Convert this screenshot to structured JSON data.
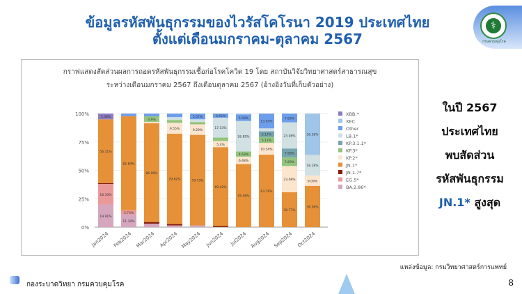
{
  "header": {
    "title_line1": "ข้อมูลรหัสพันธุกรรมของไวรัสโคโรนา 2019 ประเทศไทย",
    "title_line2": "ตั้งแต่เดือนมกราคม-ตุลาคม 2567",
    "logo_text": "กรมควบคุมโรค"
  },
  "side_text": {
    "line1": "ในปี 2567",
    "line2": "ประเทศไทย",
    "line3": "พบสัดส่วน",
    "line4": "รหัสพันธุกรรม",
    "highlight": "JN.1*",
    "line5_rest": " สูงสุด"
  },
  "footer": {
    "source": "แหล่งข้อมูล: กรมวิทยาศาสตร์การแพทย์",
    "org": "กองระบาดวิทยา กรมควบคุมโรค",
    "page": "8"
  },
  "chart_data": {
    "type": "bar",
    "stacked": true,
    "title": "กราฟแสดงสัดส่วนผลการถอดรหัสพันธุกรรมเชื้อก่อโรคโควิด 19 โดย สถาบันวิจัยวิทยาศาสตร์สาธารณสุข",
    "subtitle": "ระหว่างเดือนมกราคม 2567 ถึงเดือนตุลาคม 2567 (อ้างอิงวันที่เก็บตัวอย่าง)",
    "categories": [
      "Jan2024",
      "Feb2024",
      "Mar2024",
      "Apr2024",
      "May2024",
      "Jun2024",
      "Jul2024",
      "Aug2024",
      "Sep2024",
      "Oct2024"
    ],
    "yticks": [
      "0%",
      "25%",
      "50%",
      "75%",
      "100%"
    ],
    "ylim": [
      0,
      100
    ],
    "legend": "right",
    "series": [
      {
        "name": "BA.2.86*",
        "color": "#d5a6bd",
        "values": [
          19.91,
          11.1,
          3,
          1.5,
          1.5,
          0,
          0,
          0,
          0,
          0
        ],
        "labels": [
          "19.91%",
          "11.10%",
          "",
          "",
          "",
          "",
          "",
          "",
          "",
          ""
        ]
      },
      {
        "name": "EG.5*",
        "color": "#ea9999",
        "values": [
          18.1,
          3.73,
          0,
          0,
          0,
          0,
          0,
          0,
          0,
          0
        ],
        "labels": [
          "18.10%",
          "3.73%",
          "",
          "",
          "",
          "",
          "",
          "",
          "",
          ""
        ]
      },
      {
        "name": "JN.1.7*",
        "color": "#85200c",
        "values": [
          0.8,
          0,
          1.5,
          1.2,
          0,
          1,
          0,
          0,
          0,
          0
        ],
        "labels": [
          "",
          "",
          "",
          "",
          "",
          "",
          "",
          "",
          "",
          ""
        ]
      },
      {
        "name": "JN.1*",
        "color": "#e69138",
        "values": [
          56.11,
          82.84,
          86.99,
          79.62,
          79.73,
          69.42,
          55.56,
          63.79,
          30.77,
          36.36
        ],
        "labels": [
          "56.11%",
          "82.84%",
          "86.99%",
          "79.62%",
          "79.73%",
          "69.42%",
          "55.56%",
          "63.79%",
          "30.77%",
          "36.36%"
        ]
      },
      {
        "name": "KP.2*",
        "color": "#fce5cd",
        "values": [
          0,
          0,
          1.2,
          9.55,
          9.29,
          5.4,
          6.48,
          10.34,
          23.08,
          9.09
        ],
        "labels": [
          "",
          "",
          "",
          "9.55%",
          "9.29%",
          "5.4%",
          "6.48%",
          "10.34%",
          "23.08%",
          "9.09%"
        ]
      },
      {
        "name": "KP.3*",
        "color": "#93c47d",
        "values": [
          0,
          0,
          4.9,
          2.5,
          2.0,
          3.0,
          4.63,
          5.17,
          7.69,
          0
        ],
        "labels": [
          "",
          "",
          "4.9%",
          "",
          "",
          "",
          "4.63%",
          "5.17%",
          "7.69%",
          ""
        ]
      },
      {
        "name": "KP.3.1.1*",
        "color": "#76a5af",
        "values": [
          0,
          0,
          0,
          0,
          0,
          0,
          0,
          5.17,
          7.69,
          0
        ],
        "labels": [
          "",
          "",
          "",
          "",
          "",
          "",
          "",
          "5.17%",
          "7.69%",
          ""
        ]
      },
      {
        "name": "LB.1*",
        "color": "#d0e0e3",
        "values": [
          0,
          0,
          0,
          2.5,
          2.41,
          17.53,
          26.85,
          2.5,
          23.08,
          18.18
        ],
        "labels": [
          "",
          "",
          "",
          "",
          "",
          "17.53%",
          "26.85%",
          "",
          "23.08%",
          "18.18%"
        ]
      },
      {
        "name": "Other",
        "color": "#6d9eeb",
        "values": [
          0,
          2.33,
          2.41,
          3.13,
          5.07,
          3.65,
          5.58,
          13.03,
          7.69,
          0
        ],
        "labels": [
          "",
          "",
          "",
          "",
          "5.07%",
          "3.65%",
          "5.58%",
          "13.03%",
          "7.69%",
          ""
        ]
      },
      {
        "name": "XEC",
        "color": "#9fc5e8",
        "values": [
          0,
          0,
          0,
          0,
          0,
          0,
          0.9,
          0,
          0,
          36.36
        ],
        "labels": [
          "",
          "",
          "",
          "",
          "",
          "",
          "",
          "",
          "",
          "36.36%"
        ]
      },
      {
        "name": "XBB.*",
        "color": "#8e7cc3",
        "values": [
          5.08,
          0,
          0,
          0,
          0,
          0,
          0,
          0,
          0,
          0
        ],
        "labels": [
          "5.08%",
          "",
          "",
          "",
          "",
          "",
          "",
          "",
          "",
          ""
        ]
      }
    ]
  }
}
